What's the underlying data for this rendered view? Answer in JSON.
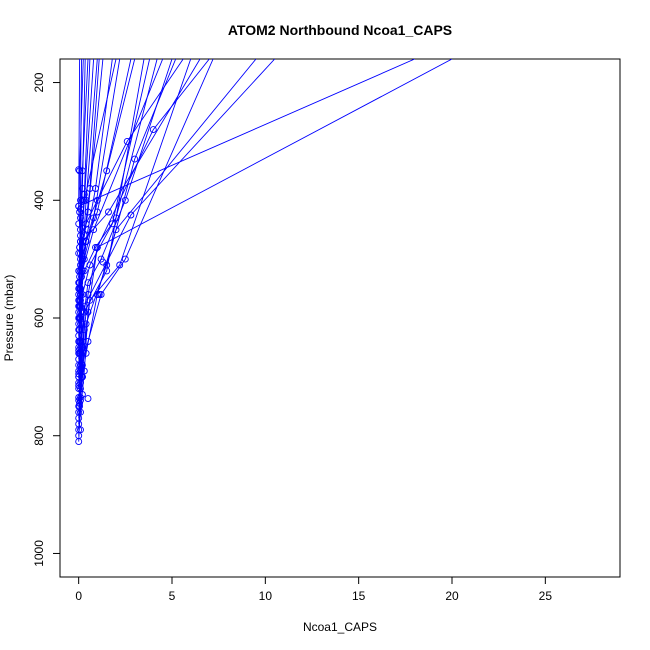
{
  "chart_data": {
    "type": "line",
    "title": "ATOM2 Northbound Ncoa1_CAPS",
    "xlabel": "Ncoa1_CAPS",
    "ylabel": "Pressure (mbar)",
    "xlim": [
      -1,
      29
    ],
    "ylim": [
      1040,
      160
    ],
    "y_reversed": true,
    "xticks": [
      0,
      5,
      10,
      15,
      20,
      25
    ],
    "yticks": [
      200,
      400,
      600,
      800,
      1000
    ],
    "xtick_labels": [
      "0",
      "5",
      "10",
      "15",
      "20",
      "25"
    ],
    "ytick_labels": [
      "200",
      "400",
      "600",
      "800",
      "1000"
    ],
    "grid": false,
    "legend": "none",
    "series_color": "#0000ff",
    "marker": "open-circle",
    "series": [
      {
        "x": [
          0.0,
          0.1,
          0.2,
          0.4,
          1.5,
          3.0,
          5.2
        ],
        "y": [
          810,
          740,
          700,
          610,
          510,
          330,
          160
        ]
      },
      {
        "x": [
          0.0,
          0.1,
          0.3,
          0.5,
          1.0,
          4.0,
          7.0
        ],
        "y": [
          800,
          760,
          690,
          590,
          480,
          280,
          160
        ]
      },
      {
        "x": [
          0.0,
          0.1,
          0.2,
          0.6,
          2.2,
          6.0
        ],
        "y": [
          790,
          735,
          680,
          570,
          510,
          160
        ]
      },
      {
        "x": [
          0.0,
          0.05,
          0.2,
          0.3,
          2.8,
          10.5
        ],
        "y": [
          780,
          750,
          700,
          580,
          425,
          160
        ]
      },
      {
        "x": [
          0.0,
          0.1,
          0.4,
          1.0,
          2.0,
          9.5
        ],
        "y": [
          770,
          720,
          660,
          560,
          450,
          160
        ]
      },
      {
        "x": [
          0.0,
          0.1,
          0.2,
          0.5,
          1.0,
          20.0
        ],
        "y": [
          760,
          710,
          650,
          560,
          480,
          160
        ]
      },
      {
        "x": [
          0.0,
          0.15,
          0.3,
          0.0,
          18.0
        ],
        "y": [
          750,
          700,
          620,
          410,
          160
        ]
      },
      {
        "x": [
          0.0,
          0.1,
          0.5,
          1.2,
          2.5,
          7.2
        ],
        "y": [
          740,
          690,
          640,
          560,
          500,
          160
        ]
      },
      {
        "x": [
          0.0,
          0.2,
          0.1,
          0.3,
          1.5,
          3.5
        ],
        "y": [
          735,
          700,
          660,
          590,
          520,
          160
        ]
      },
      {
        "x": [
          0.0,
          0.1,
          0.05,
          0.2,
          0.8,
          4.5
        ],
        "y": [
          720,
          680,
          620,
          520,
          450,
          160
        ]
      },
      {
        "x": [
          0.0,
          0.1,
          0.2,
          0.1,
          0.4,
          1.5,
          3.0
        ],
        "y": [
          715,
          690,
          650,
          560,
          470,
          350,
          160
        ]
      },
      {
        "x": [
          0.0,
          0.1,
          0.2,
          0.05,
          0.3,
          2.0
        ],
        "y": [
          710,
          680,
          640,
          530,
          400,
          160
        ]
      },
      {
        "x": [
          0.0,
          0.05,
          0.1,
          0.2,
          0.4,
          1.0
        ],
        "y": [
          700,
          660,
          600,
          500,
          400,
          160
        ]
      },
      {
        "x": [
          0.0,
          0.1,
          0.05,
          0.1,
          0.3,
          0.6
        ],
        "y": [
          695,
          650,
          580,
          490,
          390,
          160
        ]
      },
      {
        "x": [
          0.0,
          0.05,
          0.1,
          0.05,
          0.2,
          0.35
        ],
        "y": [
          690,
          640,
          570,
          480,
          380,
          160
        ]
      },
      {
        "x": [
          0.0,
          0.1,
          0.3,
          0.5,
          1.2,
          2.5,
          5.0
        ],
        "y": [
          680,
          640,
          590,
          540,
          500,
          400,
          160
        ]
      },
      {
        "x": [
          0.0,
          0.05,
          0.1,
          0.2,
          0.1,
          0.15
        ],
        "y": [
          670,
          620,
          560,
          470,
          400,
          160
        ]
      },
      {
        "x": [
          0.0,
          0.1,
          0.2,
          0.6,
          1.8,
          3.8
        ],
        "y": [
          660,
          610,
          560,
          510,
          440,
          160
        ]
      },
      {
        "x": [
          0.0,
          0.02,
          0.05,
          0.1,
          0.0,
          0.05
        ],
        "y": [
          655,
          600,
          540,
          460,
          410,
          160
        ]
      },
      {
        "x": [
          0.0,
          0.05,
          0.1,
          0.3,
          0.8,
          2.2
        ],
        "y": [
          650,
          600,
          550,
          500,
          430,
          160
        ]
      },
      {
        "x": [
          0.0,
          0.1,
          0.0,
          0.2,
          0.5,
          1.3
        ],
        "y": [
          640,
          590,
          540,
          480,
          420,
          160
        ]
      },
      {
        "x": [
          0.0,
          0.05,
          0.15,
          0.4,
          1.0,
          2.8
        ],
        "y": [
          630,
          580,
          530,
          470,
          420,
          160
        ]
      },
      {
        "x": [
          0.0,
          0.1,
          0.2,
          0.1,
          0.05,
          0.25
        ],
        "y": [
          620,
          580,
          520,
          450,
          350,
          160
        ]
      },
      {
        "x": [
          0.0,
          0.05,
          0.0,
          0.1,
          0.3,
          0.8
        ],
        "y": [
          610,
          570,
          520,
          470,
          400,
          160
        ]
      },
      {
        "x": [
          0.0,
          0.1,
          0.3,
          0.9,
          2.0,
          4.2
        ],
        "y": [
          600,
          560,
          520,
          480,
          430,
          160
        ]
      },
      {
        "x": [
          0.0,
          0.05,
          0.1,
          0.2,
          1.6,
          6.5
        ],
        "y": [
          590,
          550,
          510,
          470,
          420,
          160
        ]
      },
      {
        "x": [
          0.0,
          0.1,
          0.2,
          0.5,
          0.9,
          1.8
        ],
        "y": [
          580,
          550,
          500,
          450,
          380,
          160
        ]
      },
      {
        "x": [
          0.0,
          0.05,
          0.1,
          0.3,
          0.6,
          1.1
        ],
        "y": [
          570,
          540,
          500,
          460,
          380,
          160
        ]
      },
      {
        "x": [
          0.0,
          0.02,
          0.05,
          0.1,
          0.2,
          0.5
        ],
        "y": [
          560,
          520,
          480,
          430,
          350,
          160
        ]
      },
      {
        "x": [
          0.0,
          0.1,
          0.2,
          0.4,
          1.0,
          2.6,
          5.6
        ],
        "y": [
          550,
          520,
          480,
          440,
          400,
          300,
          160
        ]
      }
    ],
    "extra_points": {
      "x": [
        0.0,
        0.05,
        0.1,
        0.2,
        0.0,
        0.1,
        0.0,
        1.3,
        1.1,
        0.05,
        0.5,
        0.1,
        0.05,
        0.2,
        0.0
      ],
      "y": [
        348,
        420,
        415,
        400,
        440,
        470,
        490,
        505,
        560,
        600,
        737,
        790,
        745,
        730,
        700
      ]
    }
  }
}
